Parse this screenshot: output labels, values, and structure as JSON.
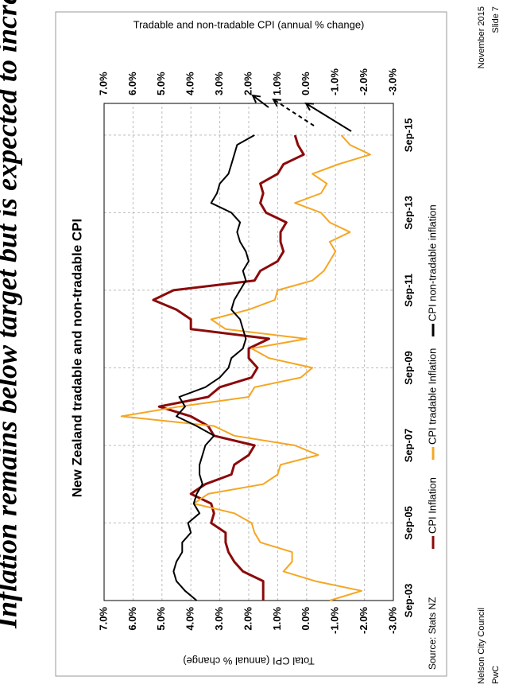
{
  "header": {
    "title": "Inflation remains below target but is expected to increase"
  },
  "chart_data": {
    "type": "line",
    "title": "New Zealand tradable and non-tradable CPI",
    "ylabel": "Total CPI (annual % change)",
    "y2label": "Tradable and non-tradable CPI (annual % change)",
    "source": "Source: Stats NZ",
    "categories": [
      "Sep-03",
      null,
      null,
      null,
      null,
      null,
      null,
      null,
      "Sep-05",
      null,
      null,
      null,
      null,
      null,
      null,
      null,
      "Sep-07",
      null,
      null,
      null,
      null,
      null,
      null,
      null,
      "Sep-09",
      null,
      null,
      null,
      null,
      null,
      null,
      null,
      "Sep-11",
      null,
      null,
      null,
      null,
      null,
      null,
      null,
      "Sep-13",
      null,
      null,
      null,
      null,
      null,
      null,
      null,
      "Sep-15"
    ],
    "series": [
      {
        "name": "CPI Inflation",
        "color": "#8b0a0a",
        "values": [
          1.5,
          1.5,
          1.5,
          2.2,
          2.5,
          2.7,
          2.8,
          2.8,
          3.3,
          3.2,
          3.3,
          4.0,
          3.5,
          2.6,
          2.5,
          2.0,
          1.8,
          3.2,
          3.4,
          4.0,
          5.1,
          3.4,
          3.0,
          1.9,
          1.7,
          2.0,
          2.0,
          1.3,
          4.0,
          4.0,
          4.5,
          5.3,
          4.6,
          1.8,
          1.6,
          1.0,
          0.8,
          0.9,
          0.9,
          0.7,
          1.4,
          1.6,
          1.5,
          1.6,
          1.0,
          0.8,
          0.1,
          0.3,
          0.4
        ]
      },
      {
        "name": "CPI tradable Inflation",
        "color": "#f5a623",
        "axis": "y2",
        "values": [
          -0.8,
          -1.9,
          -0.3,
          0.8,
          0.5,
          0.5,
          1.6,
          1.8,
          1.9,
          2.5,
          3.9,
          3.4,
          1.5,
          1.0,
          0.9,
          -0.4,
          0.4,
          2.5,
          3.2,
          6.4,
          4.4,
          2.0,
          1.8,
          0.2,
          -0.2,
          1.3,
          1.9,
          0.0,
          2.8,
          3.3,
          2.0,
          1.1,
          1.0,
          -0.2,
          -0.6,
          -0.8,
          -1.0,
          -0.8,
          -1.5,
          -0.8,
          -0.5,
          0.4,
          -0.5,
          -0.7,
          -0.2,
          -1.1,
          -2.2,
          -1.5,
          -1.2
        ]
      },
      {
        "name": "CPI non-tradable inflation",
        "color": "#000000",
        "axis": "y2",
        "values": [
          3.8,
          4.2,
          4.5,
          4.6,
          4.5,
          4.3,
          4.3,
          4.0,
          4.1,
          3.7,
          3.9,
          3.8,
          3.6,
          3.7,
          3.7,
          3.6,
          3.5,
          3.2,
          3.8,
          4.5,
          4.2,
          4.4,
          3.5,
          3.0,
          2.7,
          2.6,
          2.2,
          2.1,
          2.2,
          2.3,
          2.6,
          2.5,
          2.3,
          2.1,
          2.2,
          2.0,
          2.1,
          2.3,
          2.4,
          2.3,
          2.6,
          3.3,
          3.1,
          3.0,
          2.7,
          2.6,
          2.5,
          2.4,
          1.8
        ]
      }
    ],
    "ylim": [
      -3,
      7
    ],
    "yticks": [
      {
        "value": 7,
        "label": "7.0%"
      },
      {
        "value": 6,
        "label": "6.0%"
      },
      {
        "value": 5,
        "label": "5.0%"
      },
      {
        "value": 4,
        "label": "4.0%"
      },
      {
        "value": 3,
        "label": "3.0%"
      },
      {
        "value": 2,
        "label": "2.0%"
      },
      {
        "value": 1,
        "label": "1.0%"
      },
      {
        "value": 0,
        "label": "0.0%"
      },
      {
        "value": -1,
        "label": "-1.0%"
      },
      {
        "value": -2,
        "label": "-2.0%"
      },
      {
        "value": -3,
        "label": "-3.0%"
      }
    ],
    "y2lim": [
      -3,
      7
    ],
    "y2ticks": [
      {
        "value": 7,
        "label": "7.0%"
      },
      {
        "value": 6,
        "label": "6.0%"
      },
      {
        "value": 5,
        "label": "5.0%"
      },
      {
        "value": 4,
        "label": "4.0%"
      },
      {
        "value": 3,
        "label": "3.0%"
      },
      {
        "value": 2,
        "label": "2.0%"
      },
      {
        "value": 1,
        "label": "1.0%"
      },
      {
        "value": 0,
        "label": "0.0%"
      },
      {
        "value": -1,
        "label": "-1.0%"
      },
      {
        "value": -2,
        "label": "-2.0%"
      },
      {
        "value": -3,
        "label": "-3.0%"
      }
    ],
    "grid": true
  },
  "footer": {
    "left": [
      "Nelson City Council",
      "PwC"
    ],
    "right": [
      "November 2015",
      "Slide 7"
    ]
  }
}
